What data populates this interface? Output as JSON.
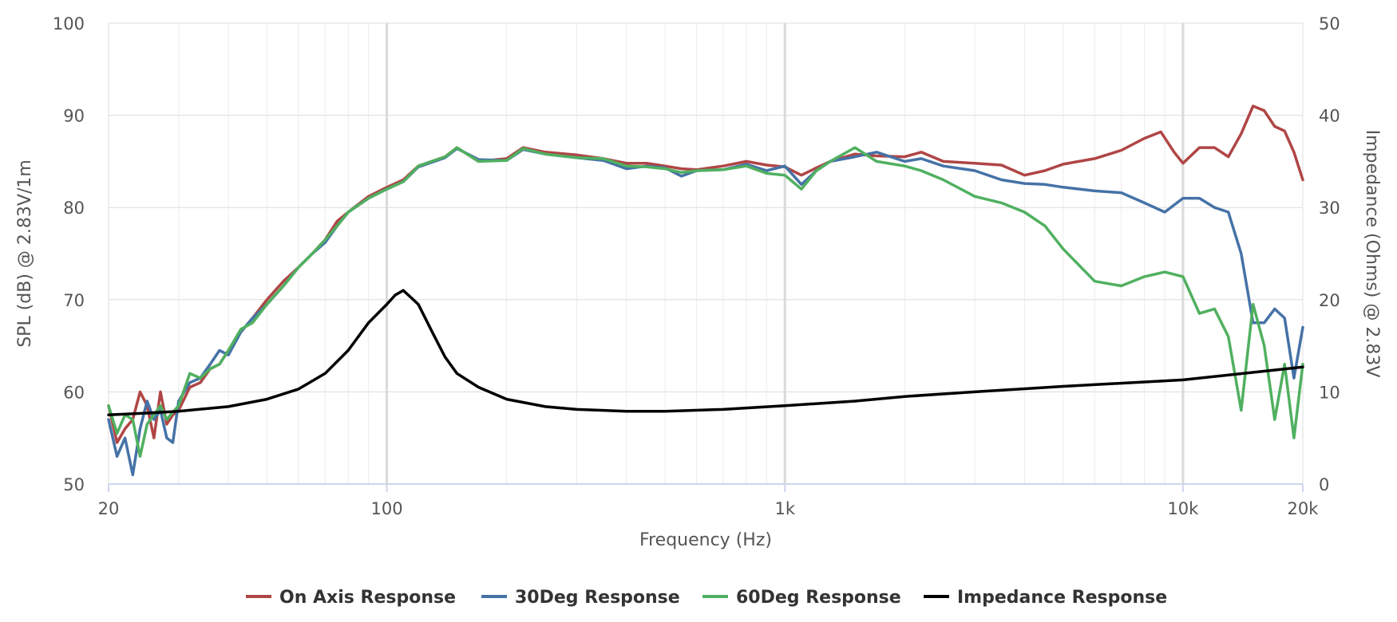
{
  "chart_data": {
    "type": "line",
    "xlabel": "Frequency (Hz)",
    "ylabel": "SPL (dB) @ 2.83V/1m",
    "y2label": "Impedance (Ohms) @ 2.83V",
    "xscale": "log",
    "xlim": [
      20,
      20000
    ],
    "ylim": [
      50,
      100
    ],
    "y2lim": [
      0,
      50
    ],
    "grid": true,
    "legend_position": "bottom",
    "x_tick_labels": [
      {
        "value": 20,
        "label": "20"
      },
      {
        "value": 100,
        "label": "100"
      },
      {
        "value": 1000,
        "label": "1k"
      },
      {
        "value": 10000,
        "label": "10k"
      },
      {
        "value": 20000,
        "label": "20k"
      }
    ],
    "y_tick_labels": [
      "50",
      "60",
      "70",
      "80",
      "90",
      "100"
    ],
    "y2_tick_labels": [
      "0",
      "10",
      "20",
      "30",
      "40",
      "50"
    ],
    "series": [
      {
        "name": "On Axis Response",
        "color": "#b04545",
        "axis": "left",
        "points": [
          [
            20,
            58.5
          ],
          [
            21,
            54.5
          ],
          [
            22,
            56
          ],
          [
            23,
            57
          ],
          [
            24,
            60
          ],
          [
            25,
            58.5
          ],
          [
            26,
            55
          ],
          [
            27,
            60
          ],
          [
            28,
            56.5
          ],
          [
            29,
            57.5
          ],
          [
            30,
            58
          ],
          [
            32,
            60.5
          ],
          [
            34,
            61
          ],
          [
            36,
            62.5
          ],
          [
            38,
            63
          ],
          [
            40,
            64.5
          ],
          [
            43,
            66.5
          ],
          [
            46,
            68
          ],
          [
            50,
            70
          ],
          [
            55,
            72
          ],
          [
            60,
            73.5
          ],
          [
            65,
            75
          ],
          [
            70,
            76.5
          ],
          [
            75,
            78.5
          ],
          [
            80,
            79.5
          ],
          [
            90,
            81.2
          ],
          [
            100,
            82.2
          ],
          [
            110,
            83
          ],
          [
            120,
            84.5
          ],
          [
            140,
            85.5
          ],
          [
            150,
            86.5
          ],
          [
            170,
            85
          ],
          [
            200,
            85.3
          ],
          [
            220,
            86.5
          ],
          [
            250,
            86
          ],
          [
            300,
            85.7
          ],
          [
            350,
            85.3
          ],
          [
            400,
            84.8
          ],
          [
            450,
            84.8
          ],
          [
            500,
            84.5
          ],
          [
            550,
            84.2
          ],
          [
            600,
            84.1
          ],
          [
            700,
            84.5
          ],
          [
            800,
            85
          ],
          [
            900,
            84.6
          ],
          [
            1000,
            84.4
          ],
          [
            1100,
            83.5
          ],
          [
            1200,
            84.3
          ],
          [
            1300,
            85
          ],
          [
            1500,
            85.8
          ],
          [
            1700,
            85.6
          ],
          [
            2000,
            85.5
          ],
          [
            2200,
            86
          ],
          [
            2500,
            85
          ],
          [
            3000,
            84.8
          ],
          [
            3500,
            84.6
          ],
          [
            4000,
            83.5
          ],
          [
            4500,
            84
          ],
          [
            5000,
            84.7
          ],
          [
            6000,
            85.3
          ],
          [
            7000,
            86.2
          ],
          [
            8000,
            87.5
          ],
          [
            8800,
            88.2
          ],
          [
            9500,
            86
          ],
          [
            10000,
            84.8
          ],
          [
            11000,
            86.5
          ],
          [
            12000,
            86.5
          ],
          [
            13000,
            85.5
          ],
          [
            14000,
            88
          ],
          [
            15000,
            91
          ],
          [
            16000,
            90.5
          ],
          [
            17000,
            88.8
          ],
          [
            18000,
            88.3
          ],
          [
            19000,
            86
          ],
          [
            20000,
            83
          ]
        ]
      },
      {
        "name": "30Deg Response",
        "color": "#4572a7",
        "axis": "left",
        "points": [
          [
            20,
            57
          ],
          [
            21,
            53
          ],
          [
            22,
            55
          ],
          [
            23,
            51
          ],
          [
            24,
            56
          ],
          [
            25,
            59
          ],
          [
            26,
            57
          ],
          [
            27,
            58
          ],
          [
            28,
            55
          ],
          [
            29,
            54.5
          ],
          [
            30,
            59
          ],
          [
            32,
            61
          ],
          [
            34,
            61.5
          ],
          [
            36,
            63
          ],
          [
            38,
            64.5
          ],
          [
            40,
            64
          ],
          [
            43,
            66.5
          ],
          [
            46,
            68
          ],
          [
            50,
            69.5
          ],
          [
            55,
            71.5
          ],
          [
            60,
            73.5
          ],
          [
            65,
            75
          ],
          [
            70,
            76.2
          ],
          [
            75,
            78
          ],
          [
            80,
            79.5
          ],
          [
            90,
            81
          ],
          [
            100,
            82
          ],
          [
            110,
            82.8
          ],
          [
            120,
            84.4
          ],
          [
            140,
            85.4
          ],
          [
            150,
            86.4
          ],
          [
            170,
            85.2
          ],
          [
            200,
            85.1
          ],
          [
            220,
            86.3
          ],
          [
            250,
            85.8
          ],
          [
            300,
            85.4
          ],
          [
            350,
            85.1
          ],
          [
            400,
            84.2
          ],
          [
            450,
            84.5
          ],
          [
            500,
            84.3
          ],
          [
            550,
            83.4
          ],
          [
            600,
            84
          ],
          [
            700,
            84.1
          ],
          [
            800,
            84.7
          ],
          [
            900,
            84
          ],
          [
            1000,
            84.5
          ],
          [
            1100,
            82.5
          ],
          [
            1200,
            84
          ],
          [
            1300,
            85
          ],
          [
            1500,
            85.5
          ],
          [
            1700,
            86
          ],
          [
            2000,
            85
          ],
          [
            2200,
            85.3
          ],
          [
            2500,
            84.5
          ],
          [
            3000,
            84
          ],
          [
            3500,
            83
          ],
          [
            4000,
            82.6
          ],
          [
            4500,
            82.5
          ],
          [
            5000,
            82.2
          ],
          [
            6000,
            81.8
          ],
          [
            7000,
            81.6
          ],
          [
            8000,
            80.5
          ],
          [
            9000,
            79.5
          ],
          [
            10000,
            81
          ],
          [
            11000,
            81
          ],
          [
            12000,
            80
          ],
          [
            13000,
            79.5
          ],
          [
            14000,
            75
          ],
          [
            15000,
            67.5
          ],
          [
            16000,
            67.5
          ],
          [
            17000,
            69
          ],
          [
            18000,
            68
          ],
          [
            19000,
            61.5
          ],
          [
            20000,
            67
          ]
        ]
      },
      {
        "name": "60Deg Response",
        "color": "#50b060",
        "axis": "left",
        "points": [
          [
            20,
            58.5
          ],
          [
            21,
            55.5
          ],
          [
            22,
            57.5
          ],
          [
            23,
            57
          ],
          [
            24,
            53
          ],
          [
            25,
            56.5
          ],
          [
            26,
            57.5
          ],
          [
            27,
            58.5
          ],
          [
            28,
            57
          ],
          [
            29,
            57.8
          ],
          [
            30,
            58.5
          ],
          [
            32,
            62
          ],
          [
            34,
            61.5
          ],
          [
            36,
            62.5
          ],
          [
            38,
            63
          ],
          [
            40,
            64.5
          ],
          [
            43,
            66.8
          ],
          [
            46,
            67.5
          ],
          [
            50,
            69.5
          ],
          [
            55,
            71.5
          ],
          [
            60,
            73.5
          ],
          [
            65,
            75
          ],
          [
            70,
            76.5
          ],
          [
            75,
            78
          ],
          [
            80,
            79.5
          ],
          [
            90,
            81
          ],
          [
            100,
            82
          ],
          [
            110,
            82.8
          ],
          [
            120,
            84.5
          ],
          [
            140,
            85.5
          ],
          [
            150,
            86.5
          ],
          [
            170,
            85
          ],
          [
            200,
            85.1
          ],
          [
            220,
            86.4
          ],
          [
            250,
            85.8
          ],
          [
            300,
            85.4
          ],
          [
            350,
            85.3
          ],
          [
            400,
            84.5
          ],
          [
            450,
            84.4
          ],
          [
            500,
            84.2
          ],
          [
            550,
            83.8
          ],
          [
            600,
            84
          ],
          [
            700,
            84.1
          ],
          [
            800,
            84.5
          ],
          [
            900,
            83.7
          ],
          [
            1000,
            83.5
          ],
          [
            1100,
            82
          ],
          [
            1200,
            84
          ],
          [
            1300,
            85
          ],
          [
            1500,
            86.5
          ],
          [
            1700,
            85
          ],
          [
            2000,
            84.5
          ],
          [
            2200,
            84
          ],
          [
            2500,
            83
          ],
          [
            3000,
            81.2
          ],
          [
            3500,
            80.5
          ],
          [
            4000,
            79.5
          ],
          [
            4500,
            78
          ],
          [
            5000,
            75.5
          ],
          [
            6000,
            72
          ],
          [
            7000,
            71.5
          ],
          [
            8000,
            72.5
          ],
          [
            9000,
            73
          ],
          [
            10000,
            72.5
          ],
          [
            11000,
            68.5
          ],
          [
            12000,
            69
          ],
          [
            13000,
            66
          ],
          [
            14000,
            58
          ],
          [
            15000,
            69.5
          ],
          [
            16000,
            65
          ],
          [
            17000,
            57
          ],
          [
            18000,
            63
          ],
          [
            19000,
            55
          ],
          [
            20000,
            63
          ]
        ]
      },
      {
        "name": "Impedance Response",
        "color": "#000000",
        "axis": "right",
        "points": [
          [
            20,
            7.5
          ],
          [
            25,
            7.7
          ],
          [
            30,
            7.9
          ],
          [
            40,
            8.4
          ],
          [
            50,
            9.2
          ],
          [
            60,
            10.3
          ],
          [
            70,
            12
          ],
          [
            80,
            14.5
          ],
          [
            90,
            17.5
          ],
          [
            100,
            19.5
          ],
          [
            105,
            20.5
          ],
          [
            110,
            21
          ],
          [
            120,
            19.5
          ],
          [
            130,
            16.5
          ],
          [
            140,
            13.8
          ],
          [
            150,
            12
          ],
          [
            170,
            10.5
          ],
          [
            200,
            9.2
          ],
          [
            250,
            8.4
          ],
          [
            300,
            8.1
          ],
          [
            400,
            7.9
          ],
          [
            500,
            7.9
          ],
          [
            700,
            8.1
          ],
          [
            1000,
            8.5
          ],
          [
            1500,
            9
          ],
          [
            2000,
            9.5
          ],
          [
            3000,
            10
          ],
          [
            5000,
            10.6
          ],
          [
            10000,
            11.3
          ],
          [
            20000,
            12.7
          ]
        ]
      }
    ]
  }
}
